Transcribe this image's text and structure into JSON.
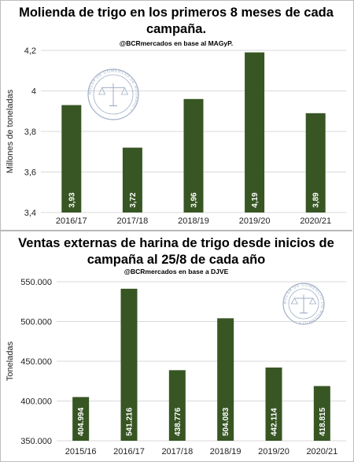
{
  "chart_data": [
    {
      "type": "bar",
      "title": "Molienda de trigo en los primeros 8 meses de cada campaña.",
      "subtitle": "@BCRmercados en base al MAGyP.",
      "ylabel": "Millones de toneladas",
      "xlabel": "",
      "categories": [
        "2016/17",
        "2017/18",
        "2018/19",
        "2019/20",
        "2020/21"
      ],
      "values": [
        3.93,
        3.72,
        3.96,
        4.19,
        3.89
      ],
      "value_labels": [
        "3,93",
        "3,72",
        "3,96",
        "4,19",
        "3,89"
      ],
      "ylim": [
        3.4,
        4.2
      ],
      "yticks": [
        3.4,
        3.6,
        3.8,
        4.0,
        4.2
      ],
      "ytick_labels": [
        "3,4",
        "3,6",
        "3,8",
        "4",
        "4,2"
      ],
      "grid": true,
      "bar_color": "#375623",
      "watermark": "BOLSA DE COMERCIO DE ROSARIO"
    },
    {
      "type": "bar",
      "title": "Ventas externas de harina de trigo desde inicios de campaña al 25/8 de cada año",
      "subtitle": "@BCRmercados en base a DJVE",
      "ylabel": "Toneladas",
      "xlabel": "",
      "categories": [
        "2015/16",
        "2016/17",
        "2017/18",
        "2018/19",
        "2019/20",
        "2020/21"
      ],
      "values": [
        404994,
        541216,
        438776,
        504083,
        442114,
        418815
      ],
      "value_labels": [
        "404.994",
        "541.216",
        "438.776",
        "504.083",
        "442.114",
        "418.815"
      ],
      "ylim": [
        350000,
        550000
      ],
      "yticks": [
        350000,
        400000,
        450000,
        500000,
        550000
      ],
      "ytick_labels": [
        "350.000",
        "400.000",
        "450.000",
        "500.000",
        "550.000"
      ],
      "grid": true,
      "bar_color": "#375623",
      "watermark": "BOLSA DE COMERCIO DE ROSARIO"
    }
  ]
}
